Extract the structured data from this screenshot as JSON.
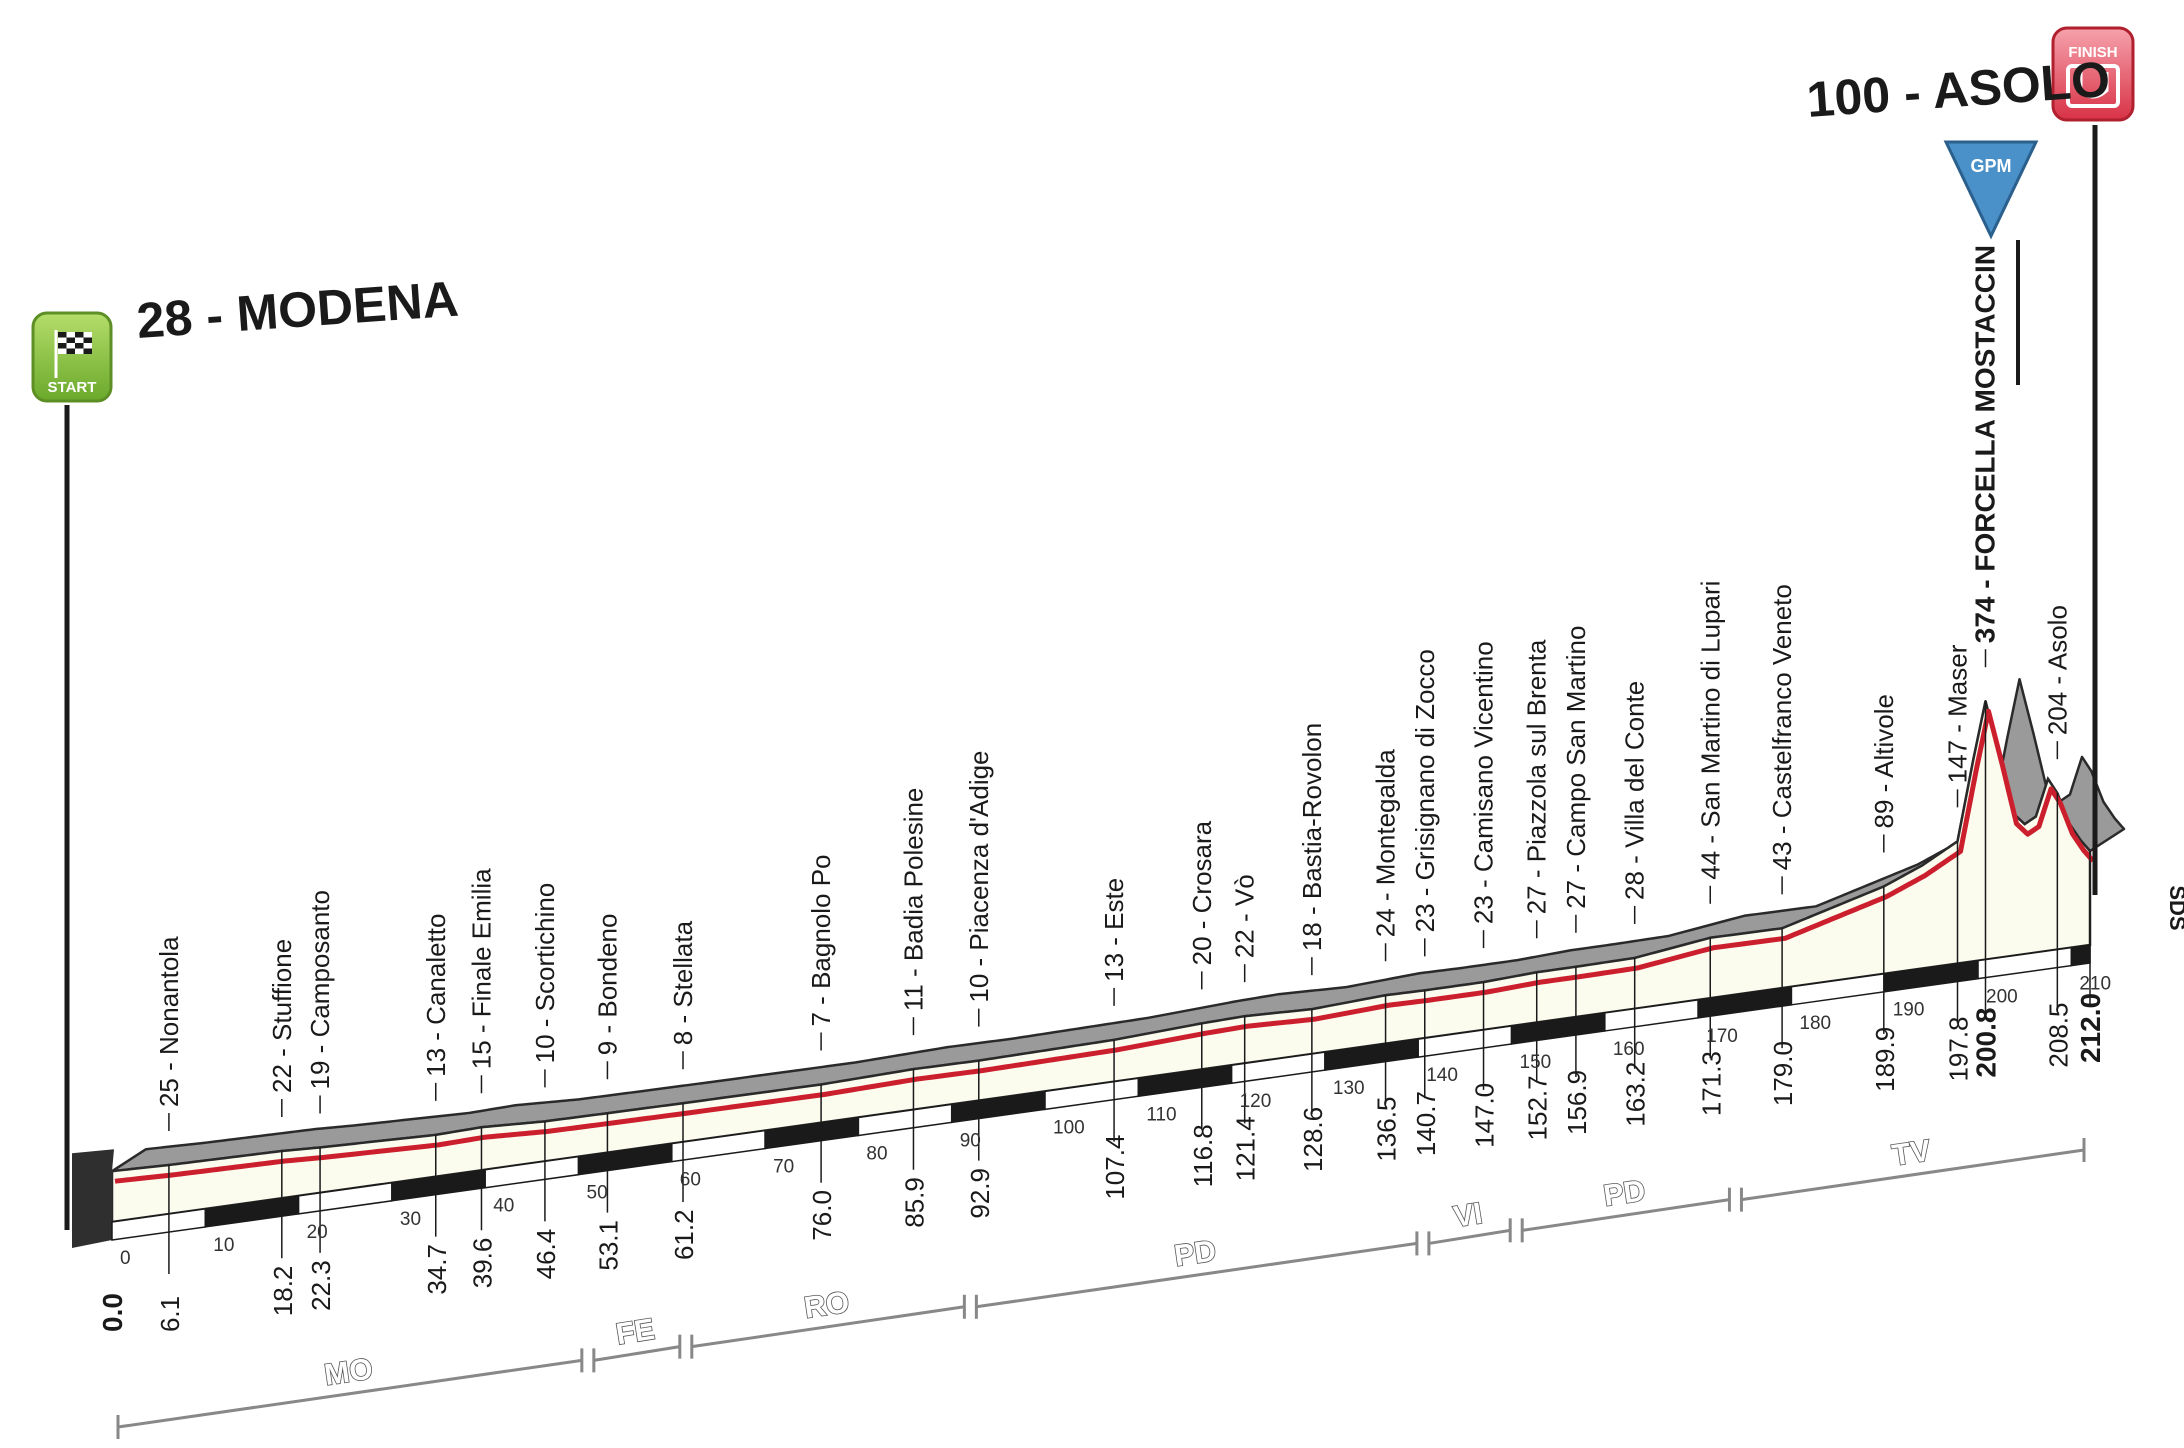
{
  "chart_data": {
    "type": "area",
    "title": "",
    "xlabel": "",
    "ylabel": "",
    "xlim": [
      0,
      212
    ],
    "ylim": [
      0,
      400
    ],
    "colors": {
      "profile_top": "#9a9a9a",
      "profile_face": "#fbfbee",
      "route_line": "#cc1f2d",
      "start_badge": "#8cc63f",
      "finish_badge": "#e8495a",
      "gpm_badge": "#4a90c9"
    },
    "start": {
      "altitude": "28",
      "name": "MODENA",
      "badge": "START",
      "km": 0,
      "alt": 28
    },
    "finish": {
      "altitude": "100",
      "name": "ASOLO",
      "badge": "FINISH",
      "km": 212,
      "alt": 100
    },
    "gpm": {
      "badge": "GPM",
      "km": 200.8
    },
    "profile": [
      {
        "km": 0,
        "alt": 28
      },
      {
        "km": 6.1,
        "alt": 25
      },
      {
        "km": 18.2,
        "alt": 22
      },
      {
        "km": 22.3,
        "alt": 19
      },
      {
        "km": 34.7,
        "alt": 13
      },
      {
        "km": 39.6,
        "alt": 15
      },
      {
        "km": 46.4,
        "alt": 10
      },
      {
        "km": 53.1,
        "alt": 9
      },
      {
        "km": 61.2,
        "alt": 8
      },
      {
        "km": 76.0,
        "alt": 7
      },
      {
        "km": 85.9,
        "alt": 11
      },
      {
        "km": 92.9,
        "alt": 10
      },
      {
        "km": 107.4,
        "alt": 13
      },
      {
        "km": 116.8,
        "alt": 20
      },
      {
        "km": 121.4,
        "alt": 22
      },
      {
        "km": 128.6,
        "alt": 18
      },
      {
        "km": 136.5,
        "alt": 24
      },
      {
        "km": 140.7,
        "alt": 23
      },
      {
        "km": 147.0,
        "alt": 23
      },
      {
        "km": 152.7,
        "alt": 27
      },
      {
        "km": 156.9,
        "alt": 27
      },
      {
        "km": 163.2,
        "alt": 28
      },
      {
        "km": 171.3,
        "alt": 44
      },
      {
        "km": 179.0,
        "alt": 43
      },
      {
        "km": 189.9,
        "alt": 89
      },
      {
        "km": 194.0,
        "alt": 115
      },
      {
        "km": 197.8,
        "alt": 147
      },
      {
        "km": 199.5,
        "alt": 280
      },
      {
        "km": 200.8,
        "alt": 374
      },
      {
        "km": 202.3,
        "alt": 280
      },
      {
        "km": 203.8,
        "alt": 180
      },
      {
        "km": 205.0,
        "alt": 160
      },
      {
        "km": 206.2,
        "alt": 170
      },
      {
        "km": 207.5,
        "alt": 230
      },
      {
        "km": 208.5,
        "alt": 204
      },
      {
        "km": 209.8,
        "alt": 150
      },
      {
        "km": 211.0,
        "alt": 120
      },
      {
        "km": 212.0,
        "alt": 100
      }
    ],
    "waypoints": [
      {
        "km": 6.1,
        "dist": "6.1",
        "label": "25 - Nonantola"
      },
      {
        "km": 18.2,
        "dist": "18.2",
        "label": "22 - Stuffione"
      },
      {
        "km": 22.3,
        "dist": "22.3",
        "label": "19 - Camposanto"
      },
      {
        "km": 34.7,
        "dist": "34.7",
        "label": "13 - Canaletto"
      },
      {
        "km": 39.6,
        "dist": "39.6",
        "label": "15 - Finale Emilia"
      },
      {
        "km": 46.4,
        "dist": "46.4",
        "label": "10 - Scortichino"
      },
      {
        "km": 53.1,
        "dist": "53.1",
        "label": "9 - Bondeno"
      },
      {
        "km": 61.2,
        "dist": "61.2",
        "label": "8 - Stellata"
      },
      {
        "km": 76.0,
        "dist": "76.0",
        "label": "7 - Bagnolo Po"
      },
      {
        "km": 85.9,
        "dist": "85.9",
        "label": "11 - Badia Polesine"
      },
      {
        "km": 92.9,
        "dist": "92.9",
        "label": "10 - Piacenza d'Adige"
      },
      {
        "km": 107.4,
        "dist": "107.4",
        "label": "13 - Este"
      },
      {
        "km": 116.8,
        "dist": "116.8",
        "label": "20 - Crosara"
      },
      {
        "km": 121.4,
        "dist": "121.4",
        "label": "22 - Vò"
      },
      {
        "km": 128.6,
        "dist": "128.6",
        "label": "18 - Bastia-Rovolon"
      },
      {
        "km": 136.5,
        "dist": "136.5",
        "label": "24 - Montegalda"
      },
      {
        "km": 140.7,
        "dist": "140.7",
        "label": "23 - Grisignano di Zocco"
      },
      {
        "km": 147.0,
        "dist": "147.0",
        "label": "23 - Camisano Vicentino"
      },
      {
        "km": 152.7,
        "dist": "152.7",
        "label": "27 - Piazzola sul Brenta"
      },
      {
        "km": 156.9,
        "dist": "156.9",
        "label": "27 - Campo San Martino"
      },
      {
        "km": 163.2,
        "dist": "163.2",
        "label": "28 - Villa del Conte"
      },
      {
        "km": 171.3,
        "dist": "171.3",
        "label": "44 - San Martino di Lupari"
      },
      {
        "km": 179.0,
        "dist": "179.0",
        "label": "43 - Castelfranco Veneto"
      },
      {
        "km": 189.9,
        "dist": "189.9",
        "label": "89 - Altivole"
      },
      {
        "km": 197.8,
        "dist": "197.8",
        "label": "147 - Maser"
      },
      {
        "km": 200.8,
        "dist": "200.8",
        "label": "374 - FORCELLA MOSTACCIN",
        "gpm": true
      },
      {
        "km": 208.5,
        "dist": "208.5",
        "label": "204 - Asolo"
      },
      {
        "km": 212.0,
        "dist": "212.0",
        "label": "",
        "major": true
      }
    ],
    "start_dist": "0.0",
    "km_ticks": [
      "0",
      "10",
      "20",
      "30",
      "40",
      "50",
      "60",
      "70",
      "80",
      "90",
      "100",
      "110",
      "120",
      "130",
      "140",
      "150",
      "160",
      "170",
      "180",
      "190",
      "200",
      "210"
    ],
    "provinces": [
      {
        "label": "MO",
        "from": 0,
        "to": 51
      },
      {
        "label": "FE",
        "from": 51,
        "to": 61.5
      },
      {
        "label": "RO",
        "from": 61.5,
        "to": 92
      },
      {
        "label": "PD",
        "from": 92,
        "to": 140.5
      },
      {
        "label": "VI",
        "from": 140.5,
        "to": 150.5
      },
      {
        "label": "PD",
        "from": 150.5,
        "to": 174
      },
      {
        "label": "TV",
        "from": 174,
        "to": 212
      }
    ],
    "sds": "SDS",
    "grid": false,
    "legend": "none"
  }
}
